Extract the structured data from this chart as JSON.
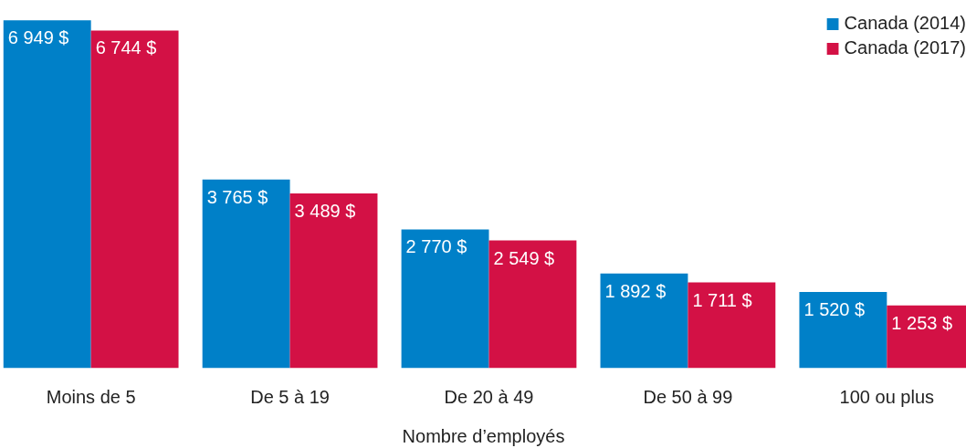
{
  "chart_data": {
    "type": "bar",
    "xlabel": "Nombre d’employés",
    "categories": [
      "Moins de 5",
      "De 5 à 19",
      "De 20 à 49",
      "De 50 à 99",
      "100 ou plus"
    ],
    "series": [
      {
        "name": "Canada (2014)",
        "color": "#0080c8",
        "values": [
          6949,
          3765,
          2770,
          1892,
          1520
        ],
        "value_labels": [
          "6 949 $",
          "3 765 $",
          "2 770 $",
          "1 892 $",
          "1 520 $"
        ]
      },
      {
        "name": "Canada (2017)",
        "color": "#d31145",
        "values": [
          6744,
          3489,
          2549,
          1711,
          1253
        ],
        "value_labels": [
          "6 744 $",
          "3 489 $",
          "2 549 $",
          "1 711 $",
          "1 253 $"
        ]
      }
    ],
    "legend": "top right",
    "grid": false
  }
}
